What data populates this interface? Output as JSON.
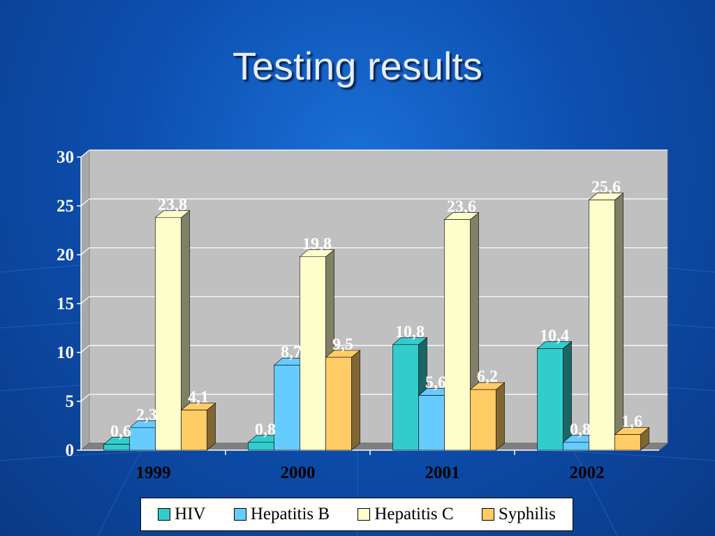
{
  "slide": {
    "title": "Testing results"
  },
  "chart_data": {
    "type": "bar",
    "title": "",
    "xlabel": "",
    "ylabel": "",
    "ylim": [
      0,
      30
    ],
    "yticks": [
      0,
      5,
      10,
      15,
      20,
      25,
      30
    ],
    "categories": [
      "1999",
      "2000",
      "2001",
      "2002"
    ],
    "series": [
      {
        "name": "HIV",
        "color": "#33cccc",
        "side_color": "#1a6666",
        "values": [
          0.6,
          0.8,
          10.8,
          10.4
        ],
        "labels": [
          "0,6",
          "0,8",
          "10,8",
          "10,4"
        ]
      },
      {
        "name": "Hepatitis B",
        "color": "#66ccff",
        "side_color": "#336680",
        "values": [
          2.3,
          8.7,
          5.6,
          0.8
        ],
        "labels": [
          "2,3",
          "8,7",
          "5,6",
          "0,8"
        ]
      },
      {
        "name": "Hepatitis C",
        "color": "#ffffcc",
        "side_color": "#808066",
        "values": [
          23.8,
          19.8,
          23.6,
          25.6
        ],
        "labels": [
          "23,8",
          "19,8",
          "23,6",
          "25,6"
        ]
      },
      {
        "name": "Syphilis",
        "color": "#ffcc66",
        "side_color": "#806633",
        "values": [
          4.1,
          9.5,
          6.2,
          1.6
        ],
        "labels": [
          "4,1",
          "9,5",
          "6,2",
          "1,6"
        ]
      }
    ],
    "grid": true,
    "legend_position": "bottom",
    "plot_colors": {
      "wall": "#c0c0c0",
      "floor": "#808080",
      "gridline": "#ffffff"
    }
  }
}
